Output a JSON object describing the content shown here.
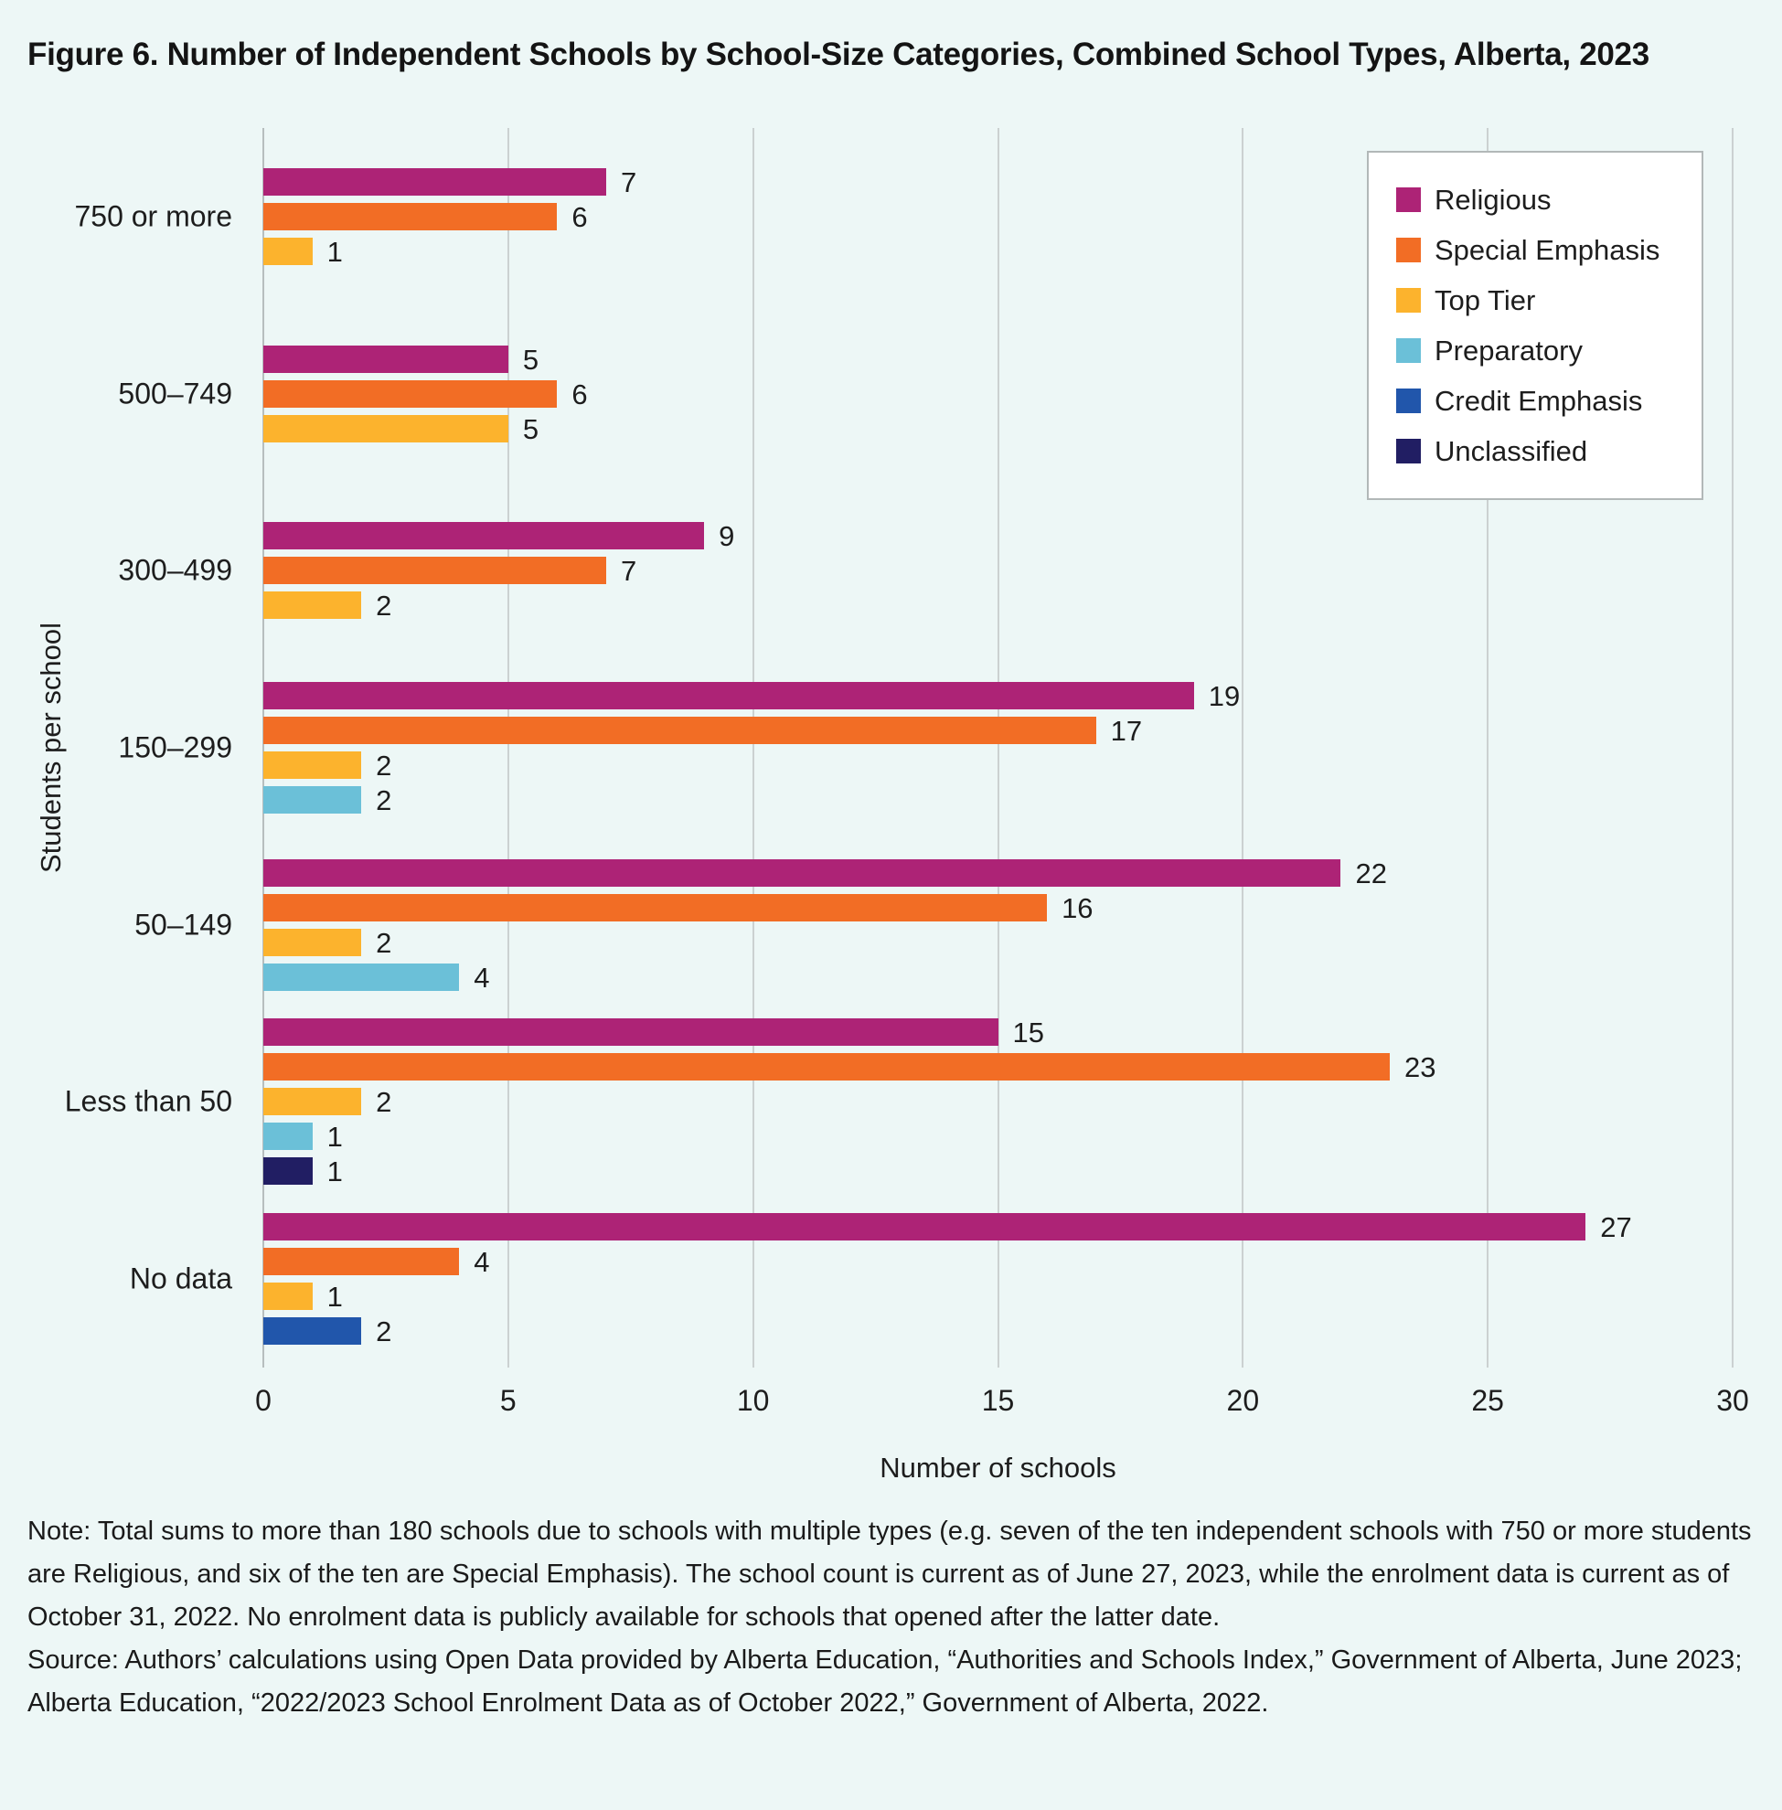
{
  "figure": {
    "title": "Figure 6. Number of Independent Schools by School-Size Categories, Combined School Types, Alberta, 2023",
    "note": "Note: Total sums to more than 180 schools due to schools with multiple types (e.g. seven of the ten independent schools with 750 or more students are Religious, and six of the ten are Special Emphasis). The school count is current as of June 27, 2023, while the enrolment data is current as of October 31, 2022. No enrolment data is publicly available for schools that opened after the latter date.",
    "source": "Source: Authors’ calculations using Open Data provided by Alberta Education, “Authorities and Schools Index,” Government of Alberta, June 2023; Alberta Education, “2022/2023 School Enrolment Data as of October 2022,” Government of Alberta, 2022."
  },
  "chart_data": {
    "type": "bar",
    "orientation": "horizontal",
    "title": "Figure 6. Number of Independent Schools by School-Size Categories, Combined School Types, Alberta, 2023",
    "xlabel": "Number of schools",
    "ylabel": "Students per school",
    "xlim": [
      0,
      30
    ],
    "xticks": [
      0,
      5,
      10,
      15,
      20,
      25,
      30
    ],
    "grid": "vertical-gridlines-at-ticks",
    "legend": {
      "position": "top-right",
      "background": "#FFFFFF",
      "border_color": "#B2B8B8",
      "entries": [
        {
          "label": "Religious",
          "color": "#AD2376"
        },
        {
          "label": "Special Emphasis",
          "color": "#F26D25"
        },
        {
          "label": "Top Tier",
          "color": "#FCB32D"
        },
        {
          "label": "Preparatory",
          "color": "#6BC0D8"
        },
        {
          "label": "Credit Emphasis",
          "color": "#2156AB"
        },
        {
          "label": "Unclassified",
          "color": "#211E63"
        }
      ]
    },
    "categories": [
      "750 or more",
      "500–749",
      "300–499",
      "150–299",
      "50–149",
      "Less than 50",
      "No data"
    ],
    "rows": [
      {
        "category": "750 or more",
        "bars": [
          {
            "series": "Religious",
            "value": 7
          },
          {
            "series": "Special Emphasis",
            "value": 6
          },
          {
            "series": "Top Tier",
            "value": 1
          }
        ]
      },
      {
        "category": "500–749",
        "bars": [
          {
            "series": "Religious",
            "value": 5
          },
          {
            "series": "Special Emphasis",
            "value": 6
          },
          {
            "series": "Top Tier",
            "value": 5
          }
        ]
      },
      {
        "category": "300–499",
        "bars": [
          {
            "series": "Religious",
            "value": 9
          },
          {
            "series": "Special Emphasis",
            "value": 7
          },
          {
            "series": "Top Tier",
            "value": 2
          }
        ]
      },
      {
        "category": "150–299",
        "bars": [
          {
            "series": "Religious",
            "value": 19
          },
          {
            "series": "Special Emphasis",
            "value": 17
          },
          {
            "series": "Top Tier",
            "value": 2
          },
          {
            "series": "Preparatory",
            "value": 2
          }
        ]
      },
      {
        "category": "50–149",
        "bars": [
          {
            "series": "Religious",
            "value": 22
          },
          {
            "series": "Special Emphasis",
            "value": 16
          },
          {
            "series": "Top Tier",
            "value": 2
          },
          {
            "series": "Preparatory",
            "value": 4
          }
        ]
      },
      {
        "category": "Less than 50",
        "bars": [
          {
            "series": "Religious",
            "value": 15
          },
          {
            "series": "Special Emphasis",
            "value": 23
          },
          {
            "series": "Top Tier",
            "value": 2
          },
          {
            "series": "Preparatory",
            "value": 1
          },
          {
            "series": "Unclassified",
            "value": 1
          }
        ]
      },
      {
        "category": "No data",
        "bars": [
          {
            "series": "Religious",
            "value": 27
          },
          {
            "series": "Special Emphasis",
            "value": 4
          },
          {
            "series": "Top Tier",
            "value": 1
          },
          {
            "series": "Credit Emphasis",
            "value": 2
          }
        ]
      }
    ]
  },
  "colors": {
    "background": "#EDF7F6",
    "gridline": "#CBD1D1",
    "axis_line": "#B7BEBE",
    "text": "#1D1D1D"
  }
}
